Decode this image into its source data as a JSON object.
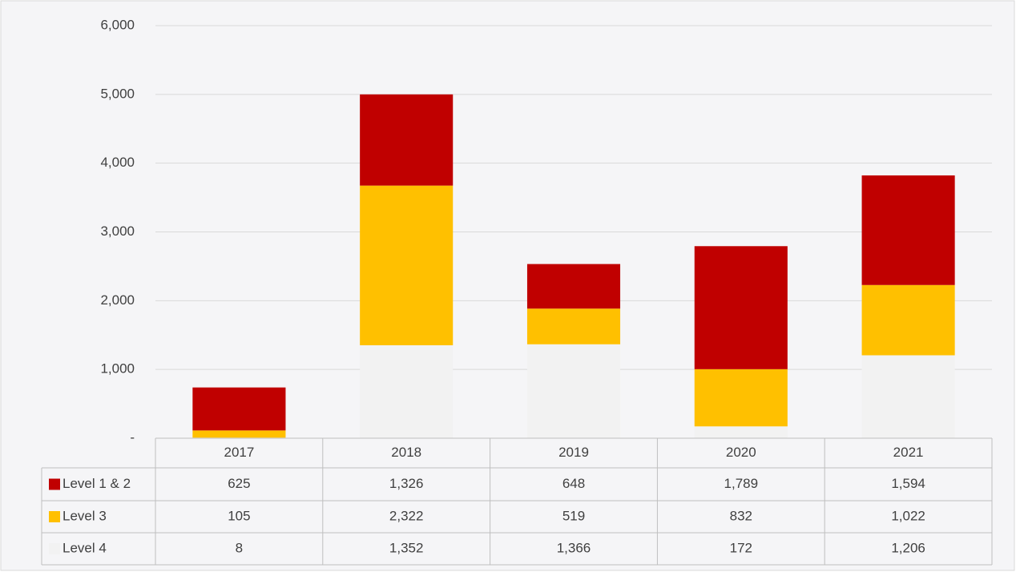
{
  "chart_data": {
    "type": "bar",
    "stacked": true,
    "categories": [
      "2017",
      "2018",
      "2019",
      "2020",
      "2021"
    ],
    "series": [
      {
        "name": "Level 1 & 2",
        "color": "#c00000",
        "values": [
          625,
          1326,
          648,
          1789,
          1594
        ],
        "value_labels": [
          "625",
          "1,326",
          "648",
          "1,789",
          "1,594"
        ]
      },
      {
        "name": "Level 3",
        "color": "#ffc000",
        "values": [
          105,
          2322,
          519,
          832,
          1022
        ],
        "value_labels": [
          "105",
          "2,322",
          "519",
          "832",
          "1,022"
        ]
      },
      {
        "name": "Level 4",
        "color": "#f2f2f2",
        "values": [
          8,
          1352,
          1366,
          172,
          1206
        ],
        "value_labels": [
          "8",
          "1,352",
          "1,366",
          "172",
          "1,206"
        ]
      }
    ],
    "ylim": [
      0,
      6000
    ],
    "yticks": [
      {
        "value": 0,
        "label": "-"
      },
      {
        "value": 1000,
        "label": "1,000"
      },
      {
        "value": 2000,
        "label": "2,000"
      },
      {
        "value": 3000,
        "label": "3,000"
      },
      {
        "value": 4000,
        "label": "4,000"
      },
      {
        "value": 5000,
        "label": "5,000"
      },
      {
        "value": 6000,
        "label": "6,000"
      }
    ],
    "grid": true
  }
}
